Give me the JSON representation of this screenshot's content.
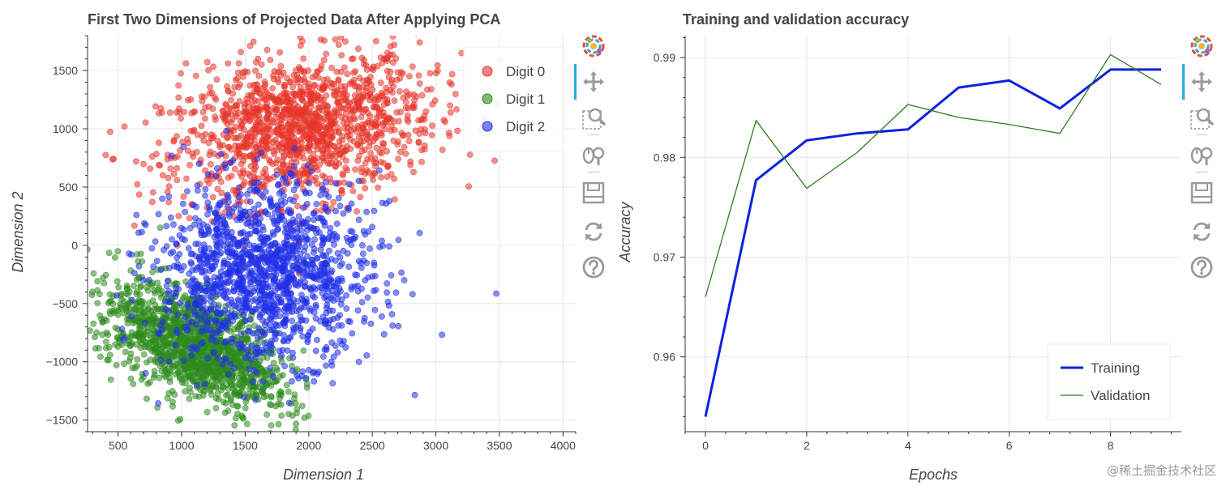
{
  "chart_data": [
    {
      "type": "scatter",
      "title": "First Two Dimensions of Projected Data After Applying PCA",
      "xlabel": "Dimension 1",
      "ylabel": "Dimension 2",
      "xlim": [
        260,
        4100
      ],
      "ylim": [
        -1600,
        1800
      ],
      "x_ticks": [
        500,
        1000,
        1500,
        2000,
        2500,
        3000,
        3500,
        4000
      ],
      "y_ticks": [
        -1500,
        -1000,
        -500,
        0,
        500,
        1000,
        1500
      ],
      "y_tick_labels": [
        "−1500",
        "−1000",
        "−500",
        "0",
        "500",
        "1000",
        "1500"
      ],
      "grid": true,
      "legend_position": "top-right",
      "series": [
        {
          "name": "Digit 0",
          "color": "#e8342a",
          "center": [
            1950,
            1000
          ],
          "spread": [
            520,
            300
          ],
          "rotation": 0.22
        },
        {
          "name": "Digit 1",
          "color": "#2e8b1e",
          "center": [
            1100,
            -850
          ],
          "spread": [
            380,
            200
          ],
          "rotation": -0.55
        },
        {
          "name": "Digit 2",
          "color": "#1f2fe8",
          "center": [
            1650,
            -250
          ],
          "spread": [
            420,
            380
          ],
          "rotation": 0.1
        }
      ]
    },
    {
      "type": "line",
      "title": "Training and validation accuracy",
      "xlabel": "Epochs",
      "ylabel": "Accuracy",
      "xlim": [
        -0.4,
        9.4
      ],
      "ylim": [
        0.9525,
        0.9922
      ],
      "x_ticks": [
        0,
        2,
        4,
        6,
        8
      ],
      "y_ticks": [
        0.96,
        0.97,
        0.98,
        0.99
      ],
      "x": [
        0,
        1,
        2,
        3,
        4,
        5,
        6,
        7,
        8,
        9
      ],
      "grid": true,
      "legend_position": "bottom-right",
      "series": [
        {
          "name": "Training",
          "color": "#0c22e0",
          "values": [
            0.954,
            0.9777,
            0.9817,
            0.9824,
            0.9828,
            0.987,
            0.9877,
            0.9849,
            0.9888,
            0.9888
          ]
        },
        {
          "name": "Validation",
          "color": "#2e7d1e",
          "values": [
            0.966,
            0.9837,
            0.9769,
            0.9805,
            0.9853,
            0.984,
            0.9833,
            0.9824,
            0.9903,
            0.9873
          ]
        }
      ]
    }
  ],
  "toolbar": {
    "tools": [
      "bokeh-logo-icon",
      "pan-icon",
      "box-zoom-icon",
      "wheel-zoom-icon",
      "save-icon",
      "reset-icon",
      "help-icon"
    ]
  },
  "watermark": "@稀土掘金技术社区"
}
